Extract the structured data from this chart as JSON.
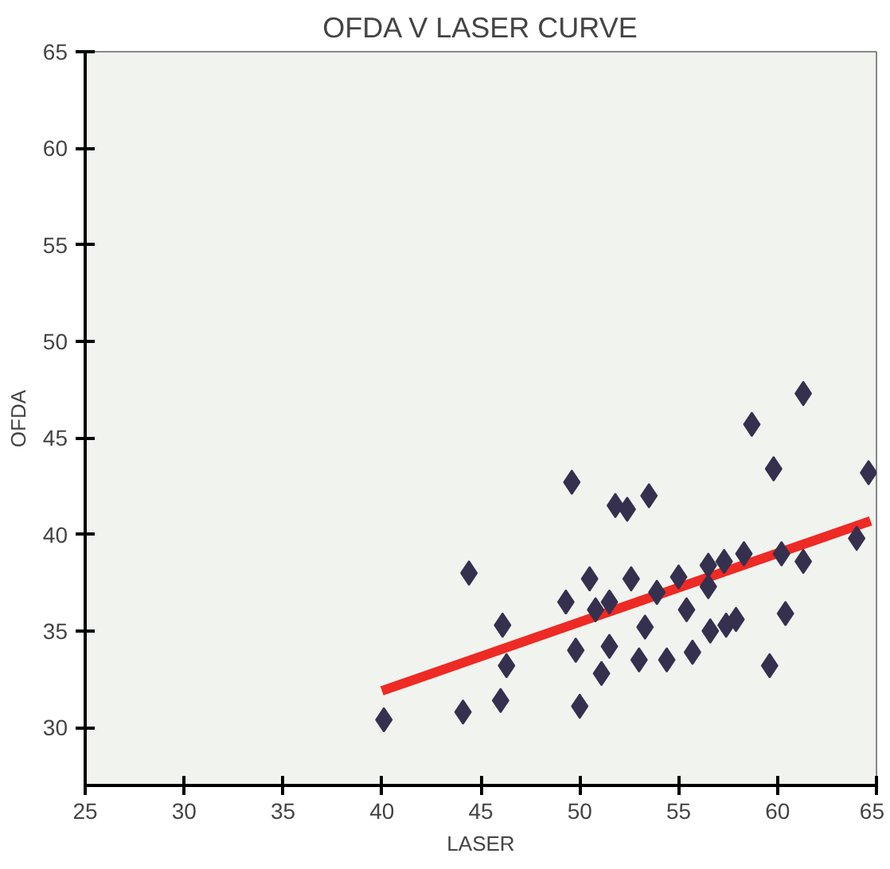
{
  "chart_data": {
    "type": "scatter",
    "title": "OFDA V LASER CURVE",
    "xlabel": "LASER",
    "ylabel": "OFDA",
    "xlim": [
      25,
      65
    ],
    "ylim": [
      27,
      65
    ],
    "xticks": [
      25,
      30,
      35,
      40,
      45,
      50,
      55,
      60,
      65
    ],
    "yticks": [
      30,
      35,
      40,
      45,
      50,
      55,
      60,
      65
    ],
    "grid": false,
    "series": [
      {
        "type": "line",
        "color": "#ee2a24",
        "x": [
          40.0,
          64.7
        ],
        "values": [
          31.9,
          40.7
        ]
      },
      {
        "marker": "diamond",
        "color": "#36304f",
        "x": [
          40.1,
          44.1,
          46.0,
          50.0,
          44.4,
          46.1,
          46.3,
          49.3,
          50.5,
          49.8,
          50.8,
          51.5,
          51.5,
          51.1,
          52.6,
          53.3,
          53.0,
          53.9,
          54.4,
          55.7,
          55.4,
          55.0,
          56.5,
          56.5,
          57.3,
          56.6,
          57.4,
          57.9,
          58.3,
          59.6,
          60.4,
          60.2,
          61.3,
          64.0,
          64.6,
          59.8,
          58.7,
          61.3,
          49.6,
          51.8,
          52.4,
          53.5
        ],
        "values": [
          30.4,
          30.8,
          31.4,
          31.1,
          38.0,
          35.3,
          33.2,
          36.5,
          37.7,
          34.0,
          36.1,
          36.5,
          34.2,
          32.8,
          37.7,
          35.2,
          33.5,
          37.0,
          33.5,
          33.9,
          36.1,
          37.8,
          38.4,
          37.3,
          38.6,
          35.0,
          35.3,
          35.6,
          39.0,
          33.2,
          35.9,
          39.0,
          38.6,
          39.8,
          43.2,
          43.4,
          45.7,
          47.3,
          42.7,
          41.5,
          41.3,
          42.0
        ]
      }
    ]
  }
}
